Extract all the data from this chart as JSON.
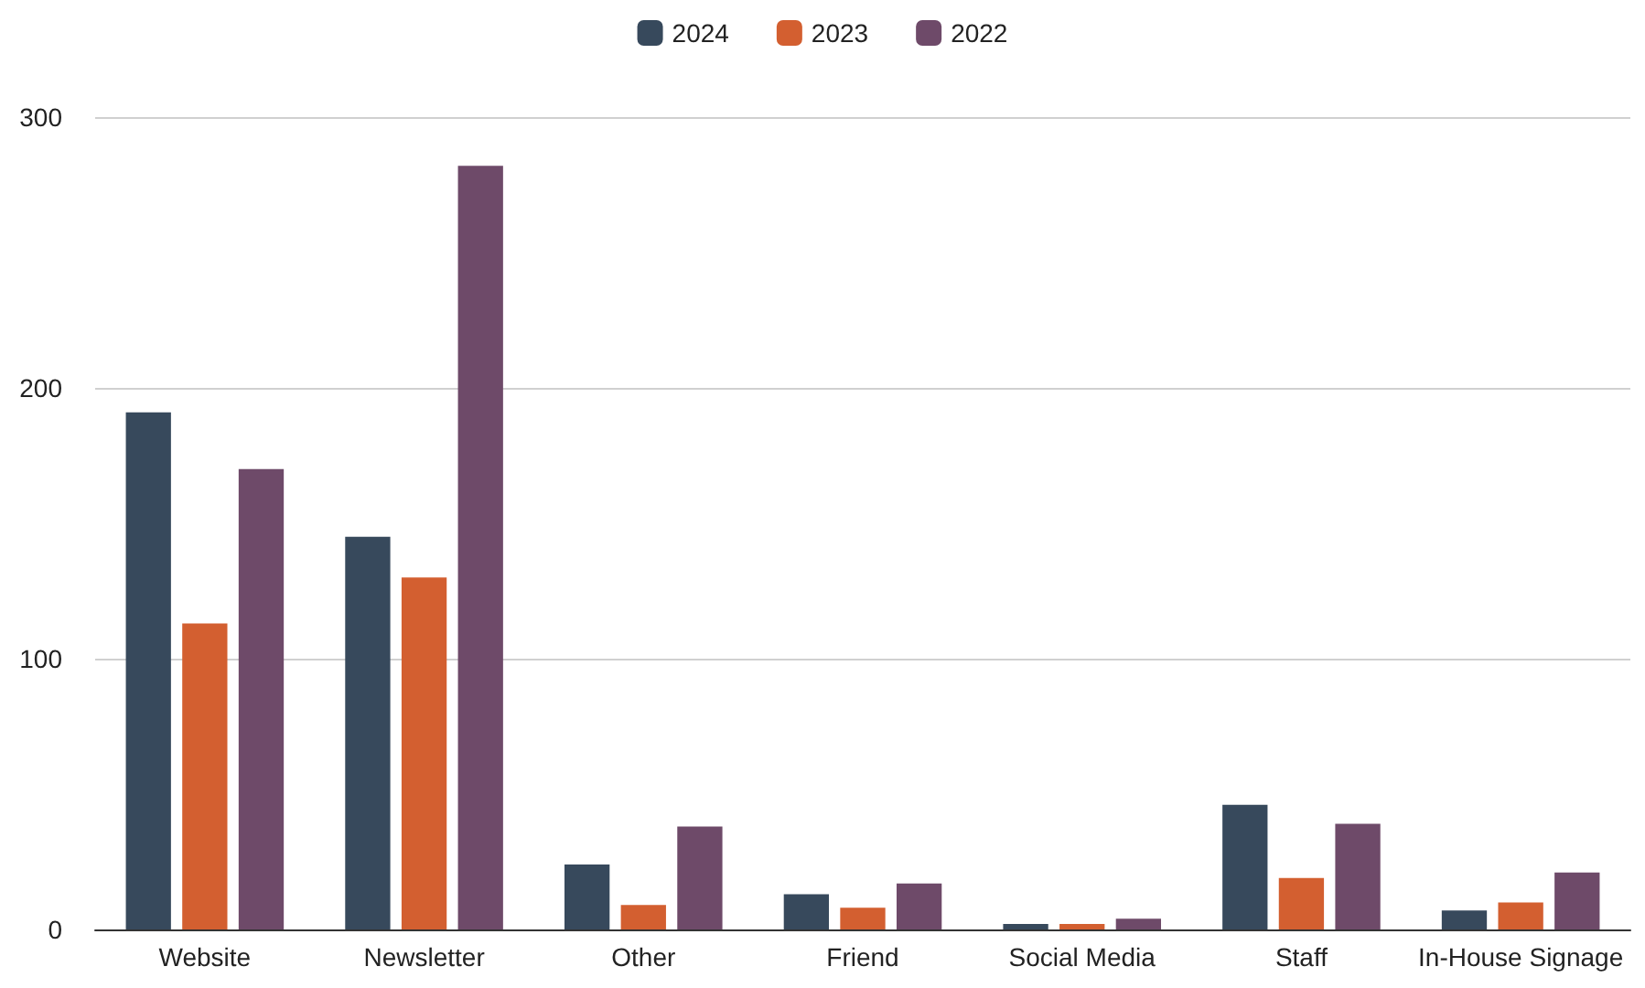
{
  "chart_data": {
    "type": "bar",
    "categories": [
      "Website",
      "Newsletter",
      "Other",
      "Friend",
      "Social Media",
      "Staff",
      "In-House Signage"
    ],
    "series": [
      {
        "name": "2024",
        "color": "#37495c",
        "values": [
          191,
          145,
          24,
          13,
          2,
          46,
          7
        ]
      },
      {
        "name": "2023",
        "color": "#d35f30",
        "values": [
          113,
          130,
          9,
          8,
          2,
          19,
          10
        ]
      },
      {
        "name": "2022",
        "color": "#6e4a69",
        "values": [
          170,
          282,
          38,
          17,
          4,
          39,
          21
        ]
      }
    ],
    "ylim": [
      0,
      300
    ],
    "yticks": [
      0,
      100,
      200,
      300
    ],
    "grid": "y",
    "legend": "top"
  }
}
